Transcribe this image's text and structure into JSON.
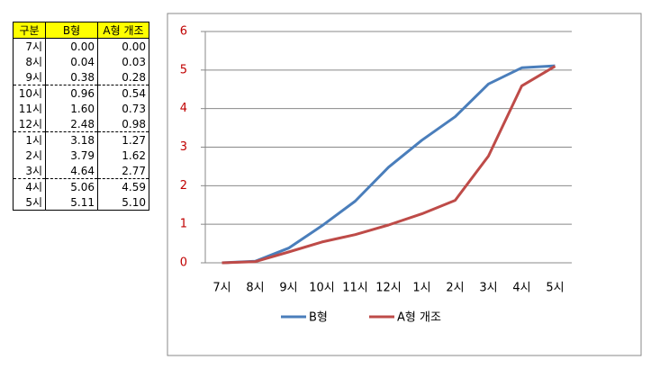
{
  "table": {
    "header": [
      "구분",
      "B형",
      "A형 개조"
    ],
    "rows": [
      [
        "7시",
        "0.00",
        "0.00"
      ],
      [
        "8시",
        "0.04",
        "0.03"
      ],
      [
        "9시",
        "0.38",
        "0.28"
      ],
      [
        "10시",
        "0.96",
        "0.54"
      ],
      [
        "11시",
        "1.60",
        "0.73"
      ],
      [
        "12시",
        "2.48",
        "0.98"
      ],
      [
        "1시",
        "3.18",
        "1.27"
      ],
      [
        "2시",
        "3.79",
        "1.62"
      ],
      [
        "3시",
        "4.64",
        "2.77"
      ],
      [
        "4시",
        "5.06",
        "4.59"
      ],
      [
        "5시",
        "5.11",
        "5.10"
      ]
    ]
  },
  "chart_data": {
    "type": "line",
    "categories": [
      "7시",
      "8시",
      "9시",
      "10시",
      "11시",
      "12시",
      "1시",
      "2시",
      "3시",
      "4시",
      "5시"
    ],
    "series": [
      {
        "name": "B형",
        "color": "#4a7ebb",
        "values": [
          0,
          0.04,
          0.38,
          0.96,
          1.6,
          2.48,
          3.18,
          3.79,
          4.64,
          5.06,
          5.11
        ]
      },
      {
        "name": "A형 개조",
        "color": "#be4b48",
        "values": [
          0,
          0.03,
          0.28,
          0.54,
          0.73,
          0.98,
          1.27,
          1.62,
          2.77,
          4.59,
          5.1
        ]
      }
    ],
    "ylim": [
      0,
      6
    ],
    "yticks": [
      0,
      1,
      2,
      3,
      4,
      5,
      6
    ],
    "ytick_color": "#c00000",
    "grid": true,
    "legend": "bottom"
  }
}
